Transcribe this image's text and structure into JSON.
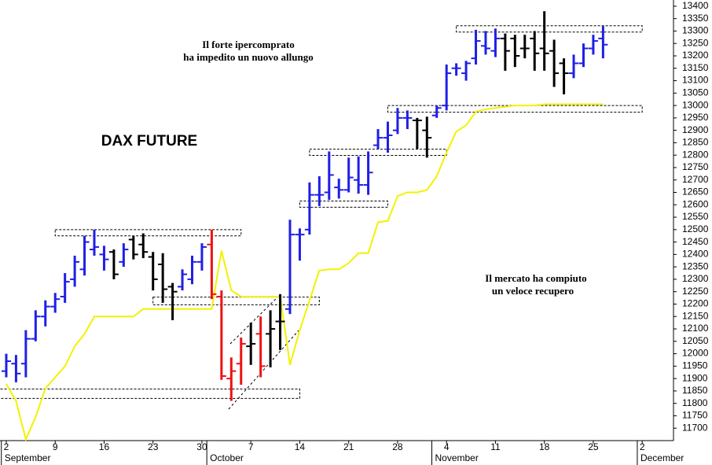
{
  "chart_data": {
    "type": "ohlc",
    "title": "DAX FUTURE",
    "annotations": [
      "Il forte ipercomprato",
      "ha impedito un nuovo allungo",
      "Il mercato ha compiuto",
      "un veloce recupero"
    ],
    "categories": [
      "2",
      null,
      null,
      null,
      null,
      "9",
      null,
      null,
      null,
      null,
      "16",
      null,
      null,
      null,
      null,
      "23",
      null,
      null,
      null,
      null,
      "30",
      null,
      null,
      null,
      null,
      "7",
      null,
      null,
      null,
      null,
      "14",
      null,
      null,
      null,
      null,
      "21",
      null,
      null,
      null,
      null,
      "28",
      null,
      null,
      null,
      null,
      "4",
      null,
      null,
      null,
      null,
      "11",
      null,
      null,
      null,
      null,
      "18",
      null,
      null,
      null,
      null,
      "25",
      null,
      null,
      null,
      null,
      "2"
    ],
    "months": [
      {
        "value": 0,
        "label": "September"
      },
      {
        "value": 21,
        "label": "October"
      },
      {
        "value": 44,
        "label": "November"
      },
      {
        "value": 65,
        "label": "December"
      }
    ],
    "open": [
      11930,
      11960,
      11960,
      12060,
      12150,
      12190,
      12230,
      12300,
      12340,
      12420,
      12400,
      12410,
      12370,
      12460,
      12440,
      12390,
      12360,
      12270,
      12270,
      12300,
      12370,
      12440,
      12230,
      11900,
      11960,
      12030,
      12080,
      12080,
      12130,
      12180,
      12480,
      12500,
      12640,
      12650,
      12670,
      12660,
      12700,
      12680,
      12840,
      12870,
      12900,
      12950,
      12940,
      12900,
      12960,
      13000,
      13150,
      13130,
      13190,
      13240,
      13220,
      13270,
      13270,
      13230,
      13270,
      13230,
      13220,
      13170,
      13130,
      13170,
      13230,
      13270,
      null,
      null,
      null,
      null
    ],
    "high": [
      12000,
      11995,
      12095,
      12175,
      12215,
      12245,
      12325,
      12395,
      12475,
      12500,
      12435,
      12420,
      12445,
      12475,
      12485,
      12410,
      12405,
      12285,
      12340,
      12395,
      12445,
      12500,
      12255,
      11985,
      12065,
      12125,
      12150,
      12175,
      12240,
      12540,
      12505,
      12690,
      12715,
      12815,
      12705,
      12790,
      12795,
      12815,
      12905,
      12935,
      12990,
      12980,
      12950,
      12955,
      13000,
      13165,
      13170,
      13180,
      13305,
      13300,
      13310,
      13290,
      13285,
      13285,
      13300,
      13380,
      13265,
      13190,
      13205,
      13250,
      13285,
      13320,
      null,
      null,
      null,
      null
    ],
    "low": [
      11905,
      11885,
      11905,
      12050,
      12110,
      12165,
      12205,
      12270,
      12315,
      12395,
      12335,
      12300,
      12350,
      12380,
      12385,
      12255,
      12205,
      12135,
      12255,
      12280,
      12335,
      12220,
      11895,
      11810,
      11875,
      11955,
      11905,
      11945,
      12015,
      12160,
      12375,
      12480,
      12595,
      12620,
      12625,
      12650,
      12645,
      12640,
      12825,
      12810,
      12885,
      12905,
      12825,
      12790,
      12950,
      12980,
      13120,
      13100,
      13165,
      13205,
      13195,
      13140,
      13155,
      13190,
      13140,
      13140,
      13075,
      13045,
      13110,
      13155,
      13205,
      13190,
      null,
      null,
      null,
      null
    ],
    "close": [
      11970,
      11920,
      12060,
      12150,
      12190,
      12220,
      12290,
      12370,
      12450,
      12430,
      12380,
      12320,
      12420,
      12400,
      12410,
      12300,
      12260,
      12250,
      12320,
      12370,
      12430,
      12240,
      11910,
      11930,
      12040,
      12040,
      11950,
      12100,
      12130,
      12480,
      12480,
      12640,
      12640,
      12720,
      12660,
      12710,
      12680,
      12730,
      12870,
      12880,
      12950,
      12950,
      12940,
      12870,
      12990,
      13130,
      13150,
      13170,
      13260,
      13230,
      13270,
      13220,
      13200,
      13230,
      13210,
      13210,
      13130,
      13130,
      13170,
      13230,
      13260,
      13245,
      null,
      null,
      null,
      null
    ],
    "bar_colors": [
      "#1f1fe6",
      "#1f1fe6",
      "#1f1fe6",
      "#1f1fe6",
      "#1f1fe6",
      "#1f1fe6",
      "#1f1fe6",
      "#1f1fe6",
      "#1f1fe6",
      "#1f1fe6",
      "#1f1fe6",
      "#000000",
      "#1f1fe6",
      "#000000",
      "#000000",
      "#000000",
      "#000000",
      "#000000",
      "#1f1fe6",
      "#1f1fe6",
      "#1f1fe6",
      "#ee1111",
      "#ee1111",
      "#ee1111",
      "#ee1111",
      "#000000",
      "#ee1111",
      "#000000",
      "#000000",
      "#1f1fe6",
      "#1f1fe6",
      "#1f1fe6",
      "#1f1fe6",
      "#1f1fe6",
      "#1f1fe6",
      "#1f1fe6",
      "#1f1fe6",
      "#1f1fe6",
      "#1f1fe6",
      "#1f1fe6",
      "#1f1fe6",
      "#1f1fe6",
      "#000000",
      "#000000",
      "#1f1fe6",
      "#1f1fe6",
      "#1f1fe6",
      "#1f1fe6",
      "#1f1fe6",
      "#1f1fe6",
      "#1f1fe6",
      "#000000",
      "#000000",
      "#000000",
      "#000000",
      "#000000",
      "#000000",
      "#000000",
      "#1f1fe6",
      "#1f1fe6",
      "#1f1fe6",
      "#1f1fe6",
      null,
      null,
      null,
      null
    ],
    "line": {
      "color": "#f2f200",
      "values": [
        11878,
        11810,
        11655,
        11745,
        11860,
        11905,
        11950,
        12030,
        12080,
        12150,
        12150,
        12150,
        12150,
        12150,
        12180,
        12180,
        12180,
        12180,
        12180,
        12180,
        12180,
        12180,
        12415,
        12255,
        12230,
        12230,
        12230,
        12230,
        12230,
        11955,
        12095,
        12215,
        12335,
        12340,
        12340,
        12365,
        12405,
        12405,
        12530,
        12535,
        12635,
        12650,
        12650,
        12660,
        12715,
        12810,
        12895,
        12920,
        12975,
        12985,
        12990,
        12995,
        13000,
        13000,
        13000,
        13005,
        13005,
        13005,
        13005,
        13005,
        13005,
        13005,
        null,
        null,
        null,
        null
      ]
    },
    "zones": [
      {
        "x": [
          5,
          24
        ],
        "y": [
          12475,
          12500
        ]
      },
      {
        "x": [
          15,
          32
        ],
        "y": [
          12197,
          12228
        ]
      },
      {
        "x": [
          -1,
          30
        ],
        "y": [
          11820,
          11858
        ]
      },
      {
        "x": [
          30,
          39
        ],
        "y": [
          12590,
          12615
        ]
      },
      {
        "x": [
          31,
          45
        ],
        "y": [
          12799,
          12824
        ]
      },
      {
        "x": [
          39,
          65
        ],
        "y": [
          12973,
          13000
        ]
      },
      {
        "x": [
          46,
          65
        ],
        "y": [
          13296,
          13321
        ]
      }
    ],
    "xlim": [
      -0.64,
      68.2
    ],
    "ylim": [
      11650,
      13425
    ],
    "yticks": [
      11700,
      11750,
      11800,
      11850,
      11900,
      11950,
      12000,
      12050,
      12100,
      12150,
      12200,
      12250,
      12300,
      12350,
      12400,
      12450,
      12500,
      12550,
      12600,
      12650,
      12700,
      12750,
      12800,
      12850,
      12900,
      12950,
      13000,
      13050,
      13100,
      13150,
      13200,
      13250,
      13300,
      13350,
      13400
    ]
  }
}
